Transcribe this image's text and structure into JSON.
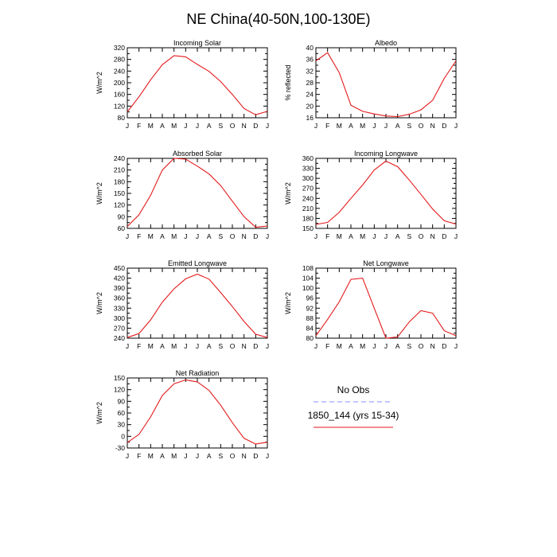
{
  "figure": {
    "title": "NE China(40-50N,100-130E)",
    "legend": {
      "obs_label": "No Obs",
      "obs_color": "#8888ff",
      "model_label": "1850_144 (yrs 15-34)",
      "model_color": "#e41a1c"
    }
  },
  "chart_data": [
    {
      "type": "line",
      "title": "Incoming Solar",
      "ylabel": "W/m^2",
      "ylim": [
        80,
        320
      ],
      "yticks": [
        80,
        120,
        160,
        200,
        240,
        280,
        320
      ],
      "categories": [
        "J",
        "F",
        "M",
        "A",
        "M",
        "J",
        "J",
        "A",
        "S",
        "O",
        "N",
        "D",
        "J"
      ],
      "values": [
        100,
        152,
        210,
        262,
        293,
        289,
        263,
        239,
        204,
        160,
        112,
        90,
        102
      ]
    },
    {
      "type": "line",
      "title": "Albedo",
      "ylabel": "% reflected",
      "ylim": [
        16,
        40
      ],
      "yticks": [
        16,
        20,
        24,
        28,
        32,
        36,
        40
      ],
      "categories": [
        "J",
        "F",
        "M",
        "A",
        "M",
        "J",
        "J",
        "A",
        "S",
        "O",
        "N",
        "D",
        "J"
      ],
      "values": [
        35.5,
        38.3,
        31.5,
        20.3,
        18.2,
        17.3,
        16.6,
        16.4,
        17.2,
        18.7,
        22.0,
        29.5,
        35.5
      ]
    },
    {
      "type": "line",
      "title": "Absorbed Solar",
      "ylabel": "W/m^2",
      "ylim": [
        60,
        240
      ],
      "yticks": [
        60,
        90,
        120,
        150,
        180,
        210,
        240
      ],
      "categories": [
        "J",
        "F",
        "M",
        "A",
        "M",
        "J",
        "J",
        "A",
        "S",
        "O",
        "N",
        "D",
        "J"
      ],
      "values": [
        65,
        95,
        145,
        210,
        240,
        238,
        220,
        200,
        170,
        130,
        90,
        63,
        66
      ]
    },
    {
      "type": "line",
      "title": "Incoming Longwave",
      "ylabel": "W/m^2",
      "ylim": [
        150,
        360
      ],
      "yticks": [
        150,
        180,
        210,
        240,
        270,
        300,
        330,
        360
      ],
      "categories": [
        "J",
        "F",
        "M",
        "A",
        "M",
        "J",
        "J",
        "A",
        "S",
        "O",
        "N",
        "D",
        "J"
      ],
      "values": [
        162,
        168,
        198,
        240,
        280,
        325,
        352,
        335,
        295,
        252,
        208,
        173,
        163
      ]
    },
    {
      "type": "line",
      "title": "Emitted Longwave",
      "ylabel": "W/m^2",
      "ylim": [
        240,
        450
      ],
      "yticks": [
        240,
        270,
        300,
        330,
        360,
        390,
        420,
        450
      ],
      "categories": [
        "J",
        "F",
        "M",
        "A",
        "M",
        "J",
        "J",
        "A",
        "S",
        "O",
        "N",
        "D",
        "J"
      ],
      "values": [
        242,
        254,
        295,
        348,
        388,
        418,
        432,
        417,
        377,
        335,
        290,
        252,
        242
      ]
    },
    {
      "type": "line",
      "title": "Net Longwave",
      "ylabel": "W/m^2",
      "ylim": [
        80,
        108
      ],
      "yticks": [
        80,
        84,
        88,
        92,
        96,
        100,
        104,
        108
      ],
      "categories": [
        "J",
        "F",
        "M",
        "A",
        "M",
        "J",
        "J",
        "A",
        "S",
        "O",
        "N",
        "D",
        "J"
      ],
      "values": [
        81,
        87.5,
        94.5,
        103.5,
        104,
        92,
        80,
        80.5,
        86.5,
        91,
        90,
        83,
        81
      ]
    },
    {
      "type": "line",
      "title": "Net Radiation",
      "ylabel": "W/m^2",
      "ylim": [
        -30,
        150
      ],
      "yticks": [
        -30,
        0,
        30,
        60,
        90,
        120,
        150
      ],
      "categories": [
        "J",
        "F",
        "M",
        "A",
        "M",
        "J",
        "J",
        "A",
        "S",
        "O",
        "N",
        "D",
        "J"
      ],
      "values": [
        -16,
        5,
        50,
        105,
        135,
        145,
        140,
        118,
        80,
        35,
        -5,
        -20,
        -15
      ]
    }
  ]
}
